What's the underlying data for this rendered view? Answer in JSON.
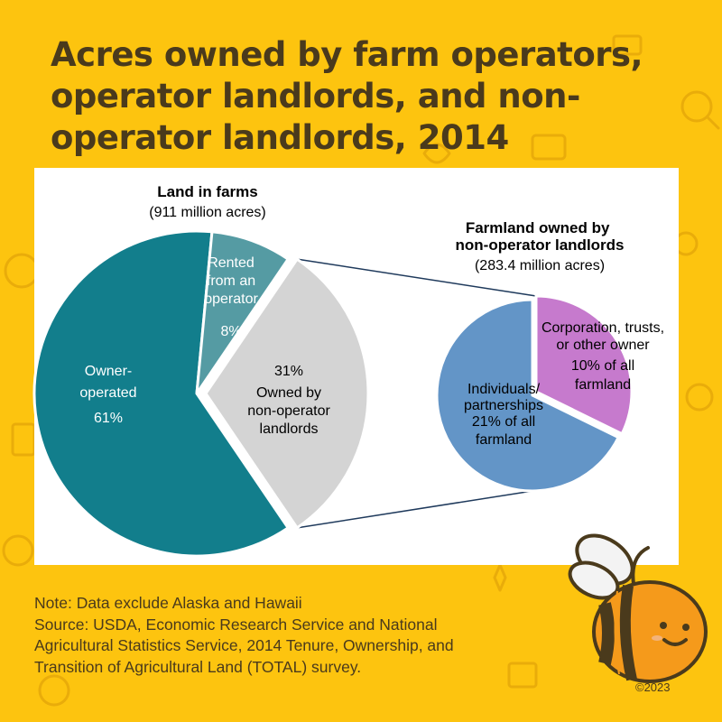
{
  "header": {
    "title": "Acres owned by farm operators,\noperator landlords, and non-\noperator landlords, 2014"
  },
  "colors": {
    "background": "#FDC40F",
    "title_text": "#4A3A1C",
    "owner_operated": "#127E8C",
    "rented_from_operator": "#559BA3",
    "non_operator": "#D4D4D4",
    "individuals": "#6395C7",
    "corporation": "#C67ACD"
  },
  "chart_data": [
    {
      "type": "pie",
      "title": "Land in farms",
      "subtitle": "(911 million acres)",
      "slices": [
        {
          "name": "Owner-operated",
          "value": 61,
          "label_lines": [
            "Owner-",
            "operated",
            "61%"
          ]
        },
        {
          "name": "Rented from an operator",
          "value": 8,
          "label_lines": [
            "Rented",
            "from an",
            "operator",
            "8%"
          ]
        },
        {
          "name": "Owned by non-operator landlords",
          "value": 31,
          "label_lines": [
            "31%",
            "Owned by",
            "non-operator",
            "landlords"
          ]
        }
      ]
    },
    {
      "type": "pie",
      "title": "Farmland owned by\nnon-operator landlords",
      "subtitle": "(283.4 million acres)",
      "slices": [
        {
          "name": "Individuals/partnerships",
          "value": 21,
          "label_lines": [
            "Individuals/",
            "partnerships",
            "21% of all",
            "farmland"
          ]
        },
        {
          "name": "Corporation, trusts, or other owner",
          "value": 10,
          "label_lines": [
            "Corporation, trusts,",
            "or other owner",
            "10% of all",
            "farmland"
          ]
        }
      ]
    }
  ],
  "footer": {
    "note": "Note: Data exclude Alaska and Hawaii",
    "source_lines": [
      "Source: USDA, Economic Research Service and National",
      "Agricultural Statistics Service, 2014 Tenure, Ownership, and",
      "Transition of Agricultural Land (TOTAL) survey."
    ],
    "copyright": "©2023"
  },
  "decorations": {
    "mascot": "bee-mascot",
    "background_pattern": "money-doodle-icons"
  }
}
